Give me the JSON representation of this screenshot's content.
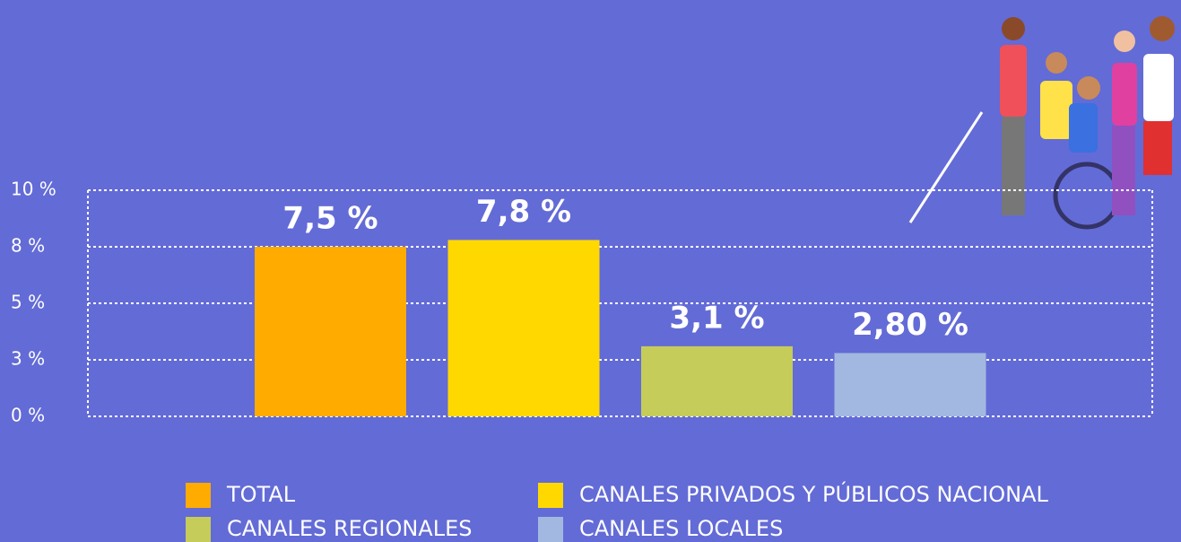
{
  "chart_data": {
    "type": "bar",
    "ylim": [
      0,
      10
    ],
    "yticks": [
      {
        "value": 0,
        "label": "0 %"
      },
      {
        "value": 2.5,
        "label": "3 %"
      },
      {
        "value": 5,
        "label": "5 %"
      },
      {
        "value": 7.5,
        "label": "8 %"
      },
      {
        "value": 10,
        "label": "10 %"
      }
    ],
    "grid": true,
    "series": [
      {
        "name": "TOTAL",
        "color": "#ffab00",
        "values": [
          7.5
        ],
        "value_labels": [
          "7,5 %"
        ]
      },
      {
        "name": "CANALES PRIVADOS Y PÚBLICOS NACIONAL",
        "color": "#ffd800",
        "values": [
          7.8
        ],
        "value_labels": [
          "7,8 %"
        ]
      },
      {
        "name": "CANALES REGIONALES",
        "color": "#c5cc5a",
        "values": [
          3.1
        ],
        "value_labels": [
          "3,1 %"
        ]
      },
      {
        "name": "CANALES LOCALES",
        "color": "#a3b8e0",
        "values": [
          2.8
        ],
        "value_labels": [
          "2,80 %"
        ]
      }
    ]
  }
}
